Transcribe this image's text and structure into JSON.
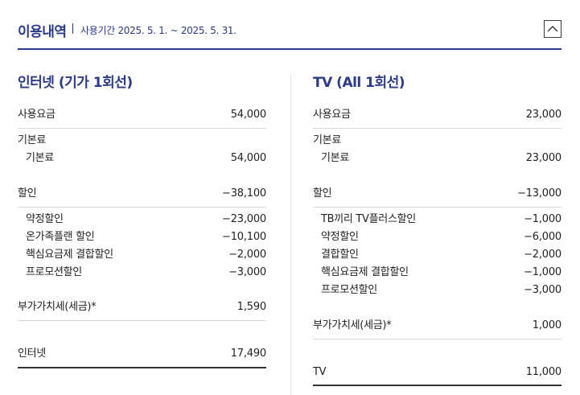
{
  "header": {
    "title": "이용내역",
    "period": "사용기간 2025. 5. 1. ~ 2025. 5. 31."
  },
  "internet": {
    "title": "인터넷 (기가 1회선)",
    "usage": {
      "label": "사용요금",
      "value": "54,000"
    },
    "base_group": "기본료",
    "base": {
      "label": "기본료",
      "value": "54,000"
    },
    "discount": {
      "label": "할인",
      "value": "−38,100"
    },
    "discount_items": [
      {
        "label": "약정할인",
        "value": "−23,000"
      },
      {
        "label": "온가족플랜 할인",
        "value": "−10,100"
      },
      {
        "label": "핵심요금제 결합할인",
        "value": "−2,000"
      },
      {
        "label": "프로모션할인",
        "value": "−3,000"
      }
    ],
    "vat": {
      "label": "부가가치세(세금)*",
      "value": "1,590"
    },
    "total": {
      "label": "인터넷",
      "value": "17,490"
    }
  },
  "tv": {
    "title": "TV (All 1회선)",
    "usage": {
      "label": "사용요금",
      "value": "23,000"
    },
    "base_group": "기본료",
    "base": {
      "label": "기본료",
      "value": "23,000"
    },
    "discount": {
      "label": "할인",
      "value": "−13,000"
    },
    "discount_items": [
      {
        "label": "TB끼리 TV플러스할인",
        "value": "−1,000"
      },
      {
        "label": "약정할인",
        "value": "−6,000"
      },
      {
        "label": "결합할인",
        "value": "−2,000"
      },
      {
        "label": "핵심요금제 결합할인",
        "value": "−1,000"
      },
      {
        "label": "프로모션할인",
        "value": "−3,000"
      }
    ],
    "vat": {
      "label": "부가가치세(세금)*",
      "value": "1,000"
    },
    "total": {
      "label": "TV",
      "value": "11,000"
    }
  },
  "icons": {
    "collapse": "chevron-up-icon"
  },
  "colors": {
    "accent": "#2b3a8c",
    "text": "#222222",
    "divider": "#d9d9d9"
  }
}
